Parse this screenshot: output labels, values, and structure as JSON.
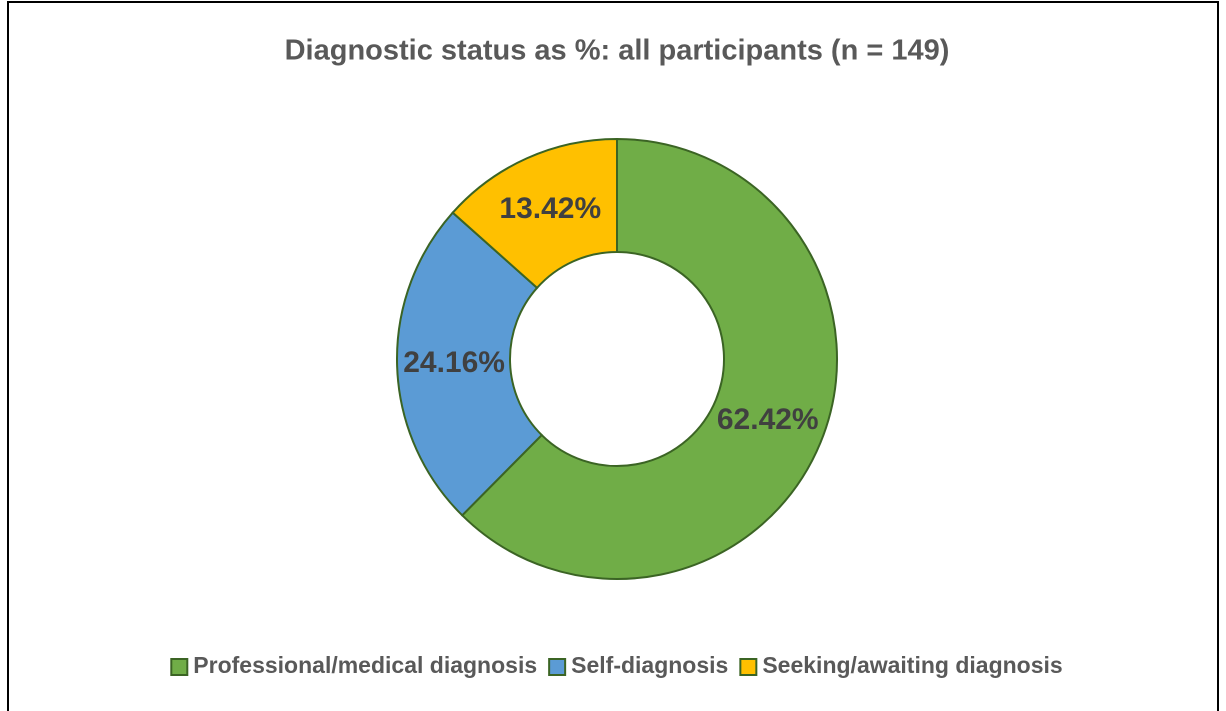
{
  "chart_data": {
    "type": "donut",
    "title": "Diagnostic status as %: all participants (n = 149)",
    "categories": [
      "Professional/medical diagnosis",
      "Self-diagnosis",
      "Seeking/awaiting diagnosis"
    ],
    "values": [
      62.42,
      24.16,
      13.42
    ],
    "value_labels": [
      "62.42%",
      "24.16%",
      "13.42%"
    ],
    "colors": [
      "#70ad47",
      "#5b9bd5",
      "#ffc000"
    ],
    "legend": "bottom"
  }
}
